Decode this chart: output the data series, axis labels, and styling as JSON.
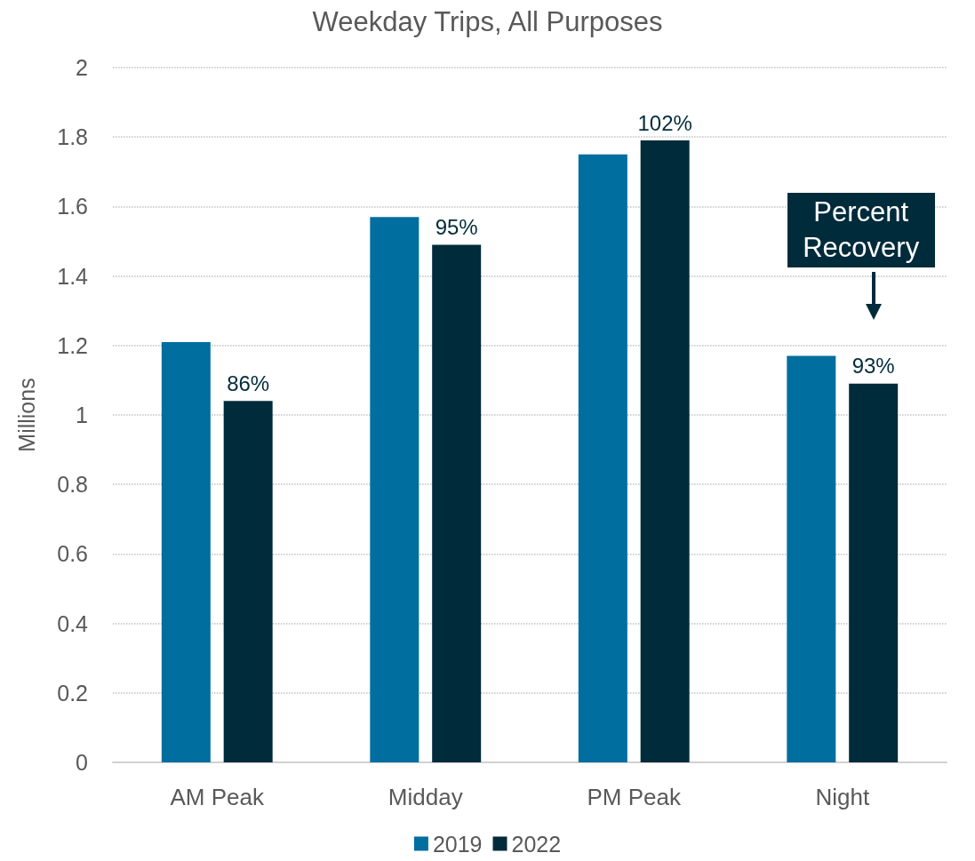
{
  "chart_data": {
    "type": "bar",
    "title": "Weekday Trips, All Purposes",
    "ylabel": "Millions",
    "categories": [
      "AM Peak",
      "Midday",
      "PM Peak",
      "Night"
    ],
    "series": [
      {
        "name": "2019",
        "color": "#006e9f",
        "values": [
          1.21,
          1.57,
          1.75,
          1.17
        ]
      },
      {
        "name": "2022",
        "color": "#002b3b",
        "values": [
          1.04,
          1.49,
          1.79,
          1.09
        ]
      }
    ],
    "ylim": [
      0,
      2
    ],
    "yticks": [
      0,
      0.2,
      0.4,
      0.6,
      0.8,
      1,
      1.2,
      1.4,
      1.6,
      1.8,
      2
    ],
    "grid": "y",
    "legend": "bottom",
    "annotations": [
      "86%",
      "95%",
      "102%",
      "93%",
      "Percent Recovery"
    ]
  }
}
